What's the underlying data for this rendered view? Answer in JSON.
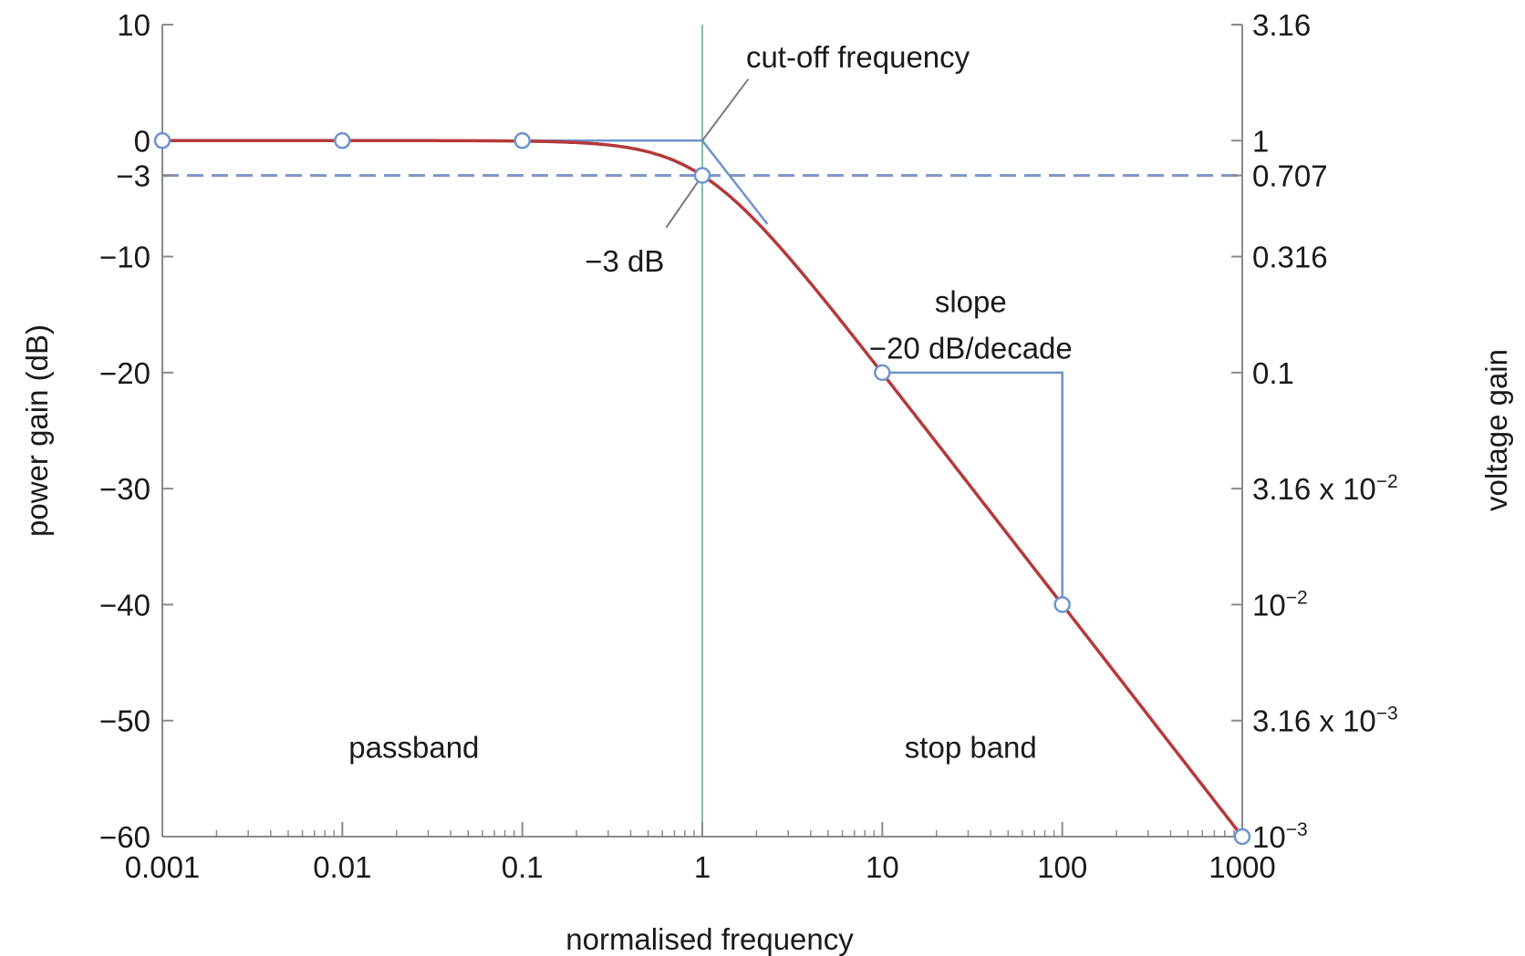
{
  "chart_data": {
    "type": "line",
    "title": "",
    "xlabel": "normalised frequency",
    "ylabel": "power gain (dB)",
    "y2label": "voltage gain",
    "x_scale": "log",
    "xlim": [
      0.001,
      1000
    ],
    "ylim": [
      -60,
      10
    ],
    "grid": false,
    "x_ticks": [
      {
        "value": 0.001,
        "label": "0.001"
      },
      {
        "value": 0.01,
        "label": "0.01"
      },
      {
        "value": 0.1,
        "label": "0.1"
      },
      {
        "value": 1,
        "label": "1"
      },
      {
        "value": 10,
        "label": "10"
      },
      {
        "value": 100,
        "label": "100"
      },
      {
        "value": 1000,
        "label": "1000"
      }
    ],
    "y_ticks": [
      {
        "value": 10,
        "label": "10"
      },
      {
        "value": 0,
        "label": "0"
      },
      {
        "value": -3,
        "label": "−3"
      },
      {
        "value": -10,
        "label": "−10"
      },
      {
        "value": -20,
        "label": "−20"
      },
      {
        "value": -30,
        "label": "−30"
      },
      {
        "value": -40,
        "label": "−40"
      },
      {
        "value": -50,
        "label": "−50"
      },
      {
        "value": -60,
        "label": "−60"
      }
    ],
    "y2_ticks": [
      {
        "value": 10,
        "base": "3.16",
        "exp": ""
      },
      {
        "value": 0,
        "base": "1",
        "exp": ""
      },
      {
        "value": -3,
        "base": "0.707",
        "exp": ""
      },
      {
        "value": -10,
        "base": "0.316",
        "exp": ""
      },
      {
        "value": -20,
        "base": "0.1",
        "exp": ""
      },
      {
        "value": -30,
        "base": "3.16 x 10",
        "exp": "−2"
      },
      {
        "value": -40,
        "base": "10",
        "exp": "−2"
      },
      {
        "value": -50,
        "base": "3.16 x 10",
        "exp": "−3"
      },
      {
        "value": -60,
        "base": "10",
        "exp": "−3"
      }
    ],
    "curve": {
      "formula": "first-order low-pass, −10·log10(1+f²)",
      "color": "#b5393a"
    },
    "markers": [
      {
        "x": 0.001,
        "y": 0
      },
      {
        "x": 0.01,
        "y": 0
      },
      {
        "x": 0.1,
        "y": 0
      },
      {
        "x": 1,
        "y": -3
      },
      {
        "x": 10,
        "y": -20
      },
      {
        "x": 100,
        "y": -40
      },
      {
        "x": 1000,
        "y": -60
      }
    ],
    "reference_lines": {
      "minus3_db_dashed": {
        "y": -3,
        "color": "#7f97c9"
      },
      "cutoff_vertical": {
        "x": 1,
        "color": "#7fbfa6"
      }
    },
    "asymptote": {
      "points": [
        {
          "x": 0.1,
          "y": 0
        },
        {
          "x": 1,
          "y": 0
        },
        {
          "x": 2.3,
          "y": -7.2
        }
      ],
      "color": "#6f93cf"
    },
    "slope_triangle": {
      "points": [
        {
          "x": 10,
          "y": -20
        },
        {
          "x": 100,
          "y": -20
        },
        {
          "x": 100,
          "y": -40
        }
      ],
      "color": "#6f93cf"
    },
    "leaders": [
      {
        "from": {
          "x": 1.0,
          "y": 0
        },
        "to": {
          "x": 1.8,
          "y": 5.3
        }
      },
      {
        "from": {
          "x": 1.0,
          "y": -3
        },
        "to": {
          "x": 0.63,
          "y": -7.5
        }
      }
    ],
    "annotations": [
      {
        "name": "cutoff-frequency-label",
        "text": "cut-off frequency",
        "x": 1.75,
        "y": 6.3,
        "anchor": "start"
      },
      {
        "name": "minus3db-label",
        "text": "−3 dB",
        "x": 0.37,
        "y": -11.3,
        "anchor": "middle"
      },
      {
        "name": "slope-label",
        "text": "slope",
        "x": 31,
        "y": -14.8,
        "anchor": "middle"
      },
      {
        "name": "slope-value-label",
        "text": "−20 dB/decade",
        "x": 31,
        "y": -18.8,
        "anchor": "middle"
      },
      {
        "name": "passband-label",
        "text": "passband",
        "x": 0.025,
        "y": -53.2,
        "anchor": "middle"
      },
      {
        "name": "stopband-label",
        "text": "stop band",
        "x": 31,
        "y": -53.2,
        "anchor": "middle"
      }
    ]
  }
}
